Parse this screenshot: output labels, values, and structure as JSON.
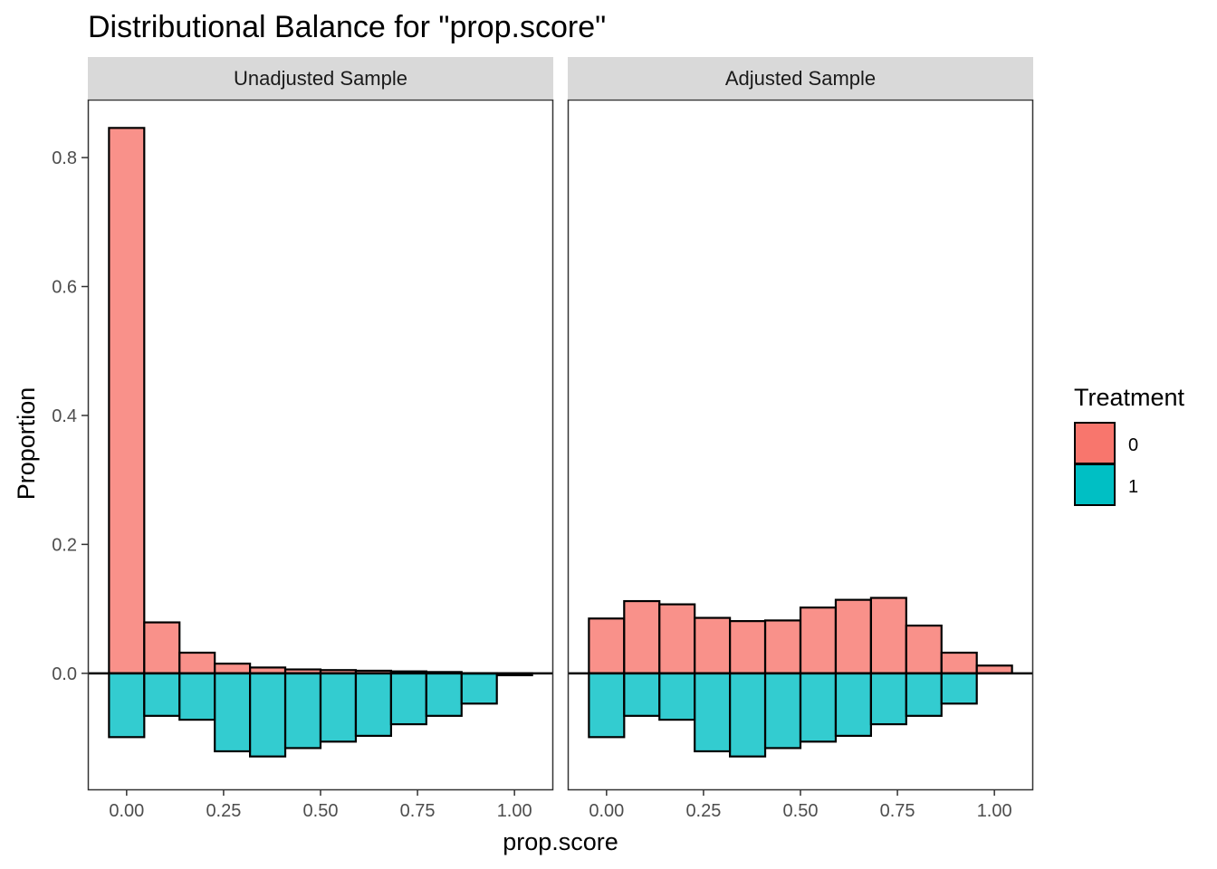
{
  "chart_data": {
    "type": "bar",
    "title": "Distributional Balance for \"prop.score\"",
    "xlabel": "prop.score",
    "ylabel": "Proportion",
    "xlim": [
      -0.1,
      1.1
    ],
    "ylim": [
      -0.18,
      0.89
    ],
    "x_ticks": [
      0.0,
      0.25,
      0.5,
      0.75,
      1.0
    ],
    "x_tick_labels": [
      "0.00",
      "0.25",
      "0.50",
      "0.75",
      "1.00"
    ],
    "y_ticks": [
      0.0,
      0.2,
      0.4,
      0.6,
      0.8
    ],
    "y_tick_labels": [
      "0.0",
      "0.2",
      "0.4",
      "0.6",
      "0.8"
    ],
    "bin_width": 0.0909,
    "bin_centers": [
      0.0,
      0.0909,
      0.1818,
      0.2727,
      0.3636,
      0.4545,
      0.5455,
      0.6364,
      0.7273,
      0.8182,
      0.9091,
      1.0
    ],
    "grid": false,
    "legend": {
      "title": "Treatment",
      "placement": "right",
      "entries": [
        {
          "label": "0",
          "color": "#F8766D"
        },
        {
          "label": "1",
          "color": "#00BFC4"
        }
      ]
    },
    "colors": {
      "treatment_0": "#F8766D",
      "treatment_1": "#00BFC4",
      "bar_alpha": 0.8
    },
    "panels": [
      {
        "name": "Unadjusted Sample",
        "series": [
          {
            "name": "0",
            "values": [
              0.846,
              0.079,
              0.032,
              0.015,
              0.009,
              0.006,
              0.005,
              0.004,
              0.003,
              0.002,
              0.0,
              -0.003
            ]
          },
          {
            "name": "1",
            "values": [
              -0.099,
              -0.066,
              -0.072,
              -0.121,
              -0.129,
              -0.116,
              -0.106,
              -0.097,
              -0.079,
              -0.066,
              -0.047,
              null
            ]
          }
        ]
      },
      {
        "name": "Adjusted Sample",
        "series": [
          {
            "name": "0",
            "values": [
              0.085,
              0.112,
              0.107,
              0.086,
              0.081,
              0.082,
              0.102,
              0.114,
              0.117,
              0.074,
              0.032,
              0.012
            ]
          },
          {
            "name": "1",
            "values": [
              -0.099,
              -0.066,
              -0.072,
              -0.121,
              -0.129,
              -0.116,
              -0.106,
              -0.097,
              -0.079,
              -0.066,
              -0.047,
              null
            ]
          }
        ]
      }
    ]
  }
}
